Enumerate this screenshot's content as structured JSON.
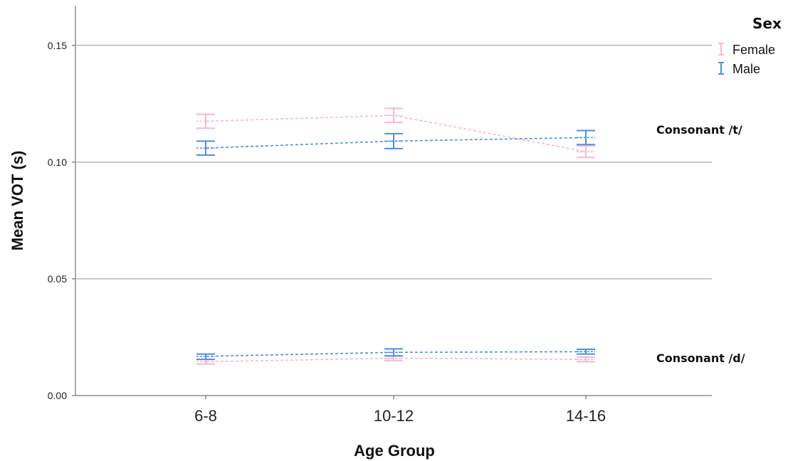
{
  "chart_data": {
    "type": "line",
    "xlabel": "Age Group",
    "ylabel": "Mean VOT (s)",
    "categories": [
      "6-8",
      "10-12",
      "14-16"
    ],
    "ylim": [
      0.0,
      0.167
    ],
    "yticks": [
      {
        "value": 0.0,
        "label": "0.00"
      },
      {
        "value": 0.05,
        "label": "0.05"
      },
      {
        "value": 0.1,
        "label": "0.10"
      },
      {
        "value": 0.15,
        "label": "0.15"
      }
    ],
    "grid": "horizontal gridlines",
    "error_bars": true,
    "legend": {
      "title": "Sex",
      "position": "top-right",
      "entries": [
        {
          "name": "Female",
          "color": "#f6b7cf"
        },
        {
          "name": "Male",
          "color": "#4e8ede"
        }
      ]
    },
    "panels": [
      {
        "label": "Consonant /t/",
        "series": [
          {
            "name": "Female",
            "color": "#f6b7cf",
            "values": [
              0.1175,
              0.12,
              0.1045
            ],
            "lower": [
              0.1145,
              0.117,
              0.102
            ],
            "upper": [
              0.1205,
              0.123,
              0.107
            ]
          },
          {
            "name": "Male",
            "color": "#4e8ede",
            "values": [
              0.106,
              0.109,
              0.1105
            ],
            "lower": [
              0.103,
              0.1058,
              0.1075
            ],
            "upper": [
              0.109,
              0.1122,
              0.1135
            ]
          }
        ]
      },
      {
        "label": "Consonant /d/",
        "series": [
          {
            "name": "Female",
            "color": "#f6b7cf",
            "values": [
              0.0145,
              0.016,
              0.0155
            ],
            "lower": [
              0.0135,
              0.015,
              0.0145
            ],
            "upper": [
              0.0155,
              0.017,
              0.0165
            ]
          },
          {
            "name": "Male",
            "color": "#4e8ede",
            "values": [
              0.0168,
              0.0185,
              0.0188
            ],
            "lower": [
              0.0155,
              0.017,
              0.0178
            ],
            "upper": [
              0.0178,
              0.02,
              0.0198
            ]
          }
        ]
      }
    ]
  }
}
